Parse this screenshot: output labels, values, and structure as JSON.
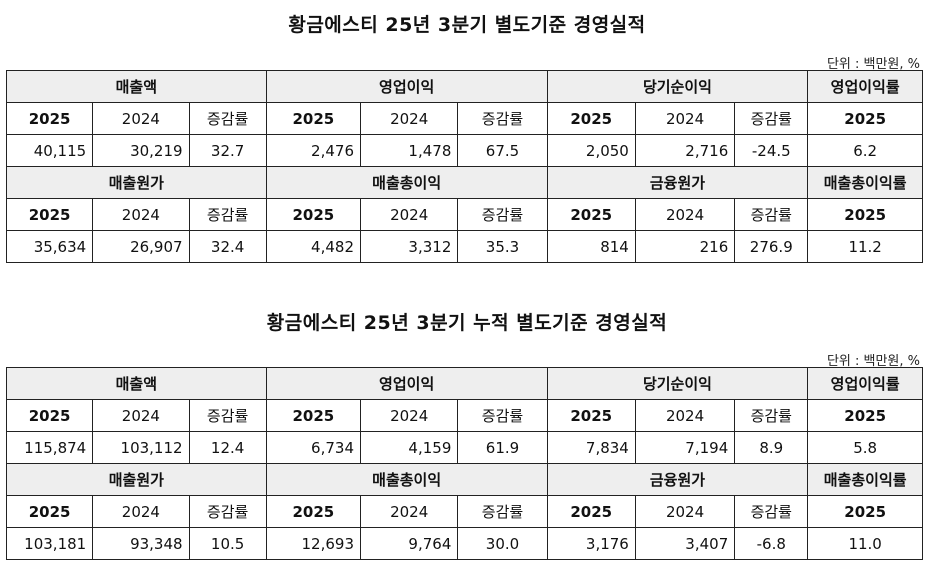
{
  "sections": [
    {
      "title": "황금에스티 25년 3분기 별도기준 경영실적",
      "unit": "단위 : 백만원, %",
      "row1_headers": [
        "매출액",
        "영업이익",
        "당기순이익",
        "영업이익률"
      ],
      "row2_headers": [
        "매출원가",
        "매출총이익",
        "금융원가",
        "매출총이익률"
      ],
      "sub_headers": [
        "2025",
        "2024",
        "증감률",
        "2025",
        "2024",
        "증감률",
        "2025",
        "2024",
        "증감률",
        "2025"
      ],
      "row1_values": [
        "40,115",
        "30,219",
        "32.7",
        "2,476",
        "1,478",
        "67.5",
        "2,050",
        "2,716",
        "-24.5",
        "6.2"
      ],
      "row2_values": [
        "35,634",
        "26,907",
        "32.4",
        "4,482",
        "3,312",
        "35.3",
        "814",
        "216",
        "276.9",
        "11.2"
      ]
    },
    {
      "title": "황금에스티 25년 3분기 누적 별도기준 경영실적",
      "unit": "단위 : 백만원, %",
      "row1_headers": [
        "매출액",
        "영업이익",
        "당기순이익",
        "영업이익률"
      ],
      "row2_headers": [
        "매출원가",
        "매출총이익",
        "금융원가",
        "매출총이익률"
      ],
      "sub_headers": [
        "2025",
        "2024",
        "증감률",
        "2025",
        "2024",
        "증감률",
        "2025",
        "2024",
        "증감률",
        "2025"
      ],
      "row1_values": [
        "115,874",
        "103,112",
        "12.4",
        "6,734",
        "4,159",
        "61.9",
        "7,834",
        "7,194",
        "8.9",
        "5.8"
      ],
      "row2_values": [
        "103,181",
        "93,348",
        "10.5",
        "12,693",
        "9,764",
        "30.0",
        "3,176",
        "3,407",
        "-6.8",
        "11.0"
      ]
    }
  ]
}
